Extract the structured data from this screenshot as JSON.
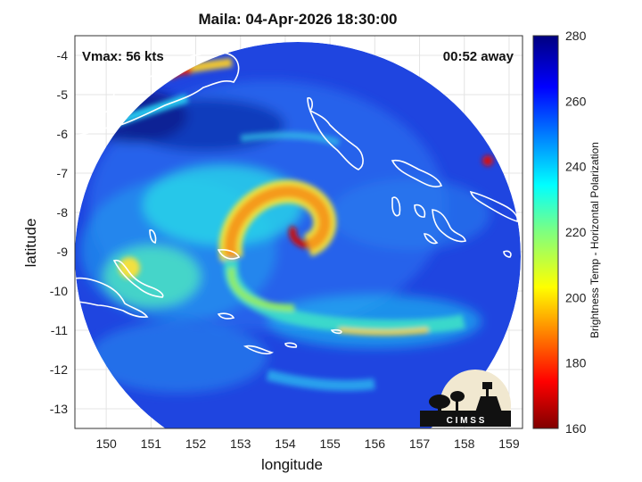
{
  "title": "Maila: 04-Apr-2026 18:30:00",
  "overlay": {
    "vmax": "Vmax: 56 kts",
    "away": "00:52 away"
  },
  "axes": {
    "xlabel": "longitude",
    "ylabel": "latitude",
    "xlim": [
      149.3,
      159.3
    ],
    "ylim": [
      -13.5,
      -3.5
    ],
    "xticks": [
      "150",
      "151",
      "152",
      "153",
      "154",
      "155",
      "156",
      "157",
      "158",
      "159"
    ],
    "yticks": [
      "-4",
      "-5",
      "-6",
      "-7",
      "-8",
      "-9",
      "-10",
      "-11",
      "-12",
      "-13"
    ],
    "grid": true
  },
  "colorbar": {
    "label": "Brightness Temp - Horizontal Polarization",
    "range": [
      160,
      280
    ],
    "ticks": [
      "280",
      "260",
      "240",
      "220",
      "200",
      "180",
      "160"
    ],
    "colormap": "jet"
  },
  "storm_center": {
    "lon": 154.5,
    "lat": -8.8
  },
  "logo": {
    "text": "C I M S S",
    "name": "cimss-logo"
  },
  "colors": {
    "cold_core": "#8b0000",
    "background_warm": "#1e3cd8",
    "coast": "#ffffff"
  }
}
